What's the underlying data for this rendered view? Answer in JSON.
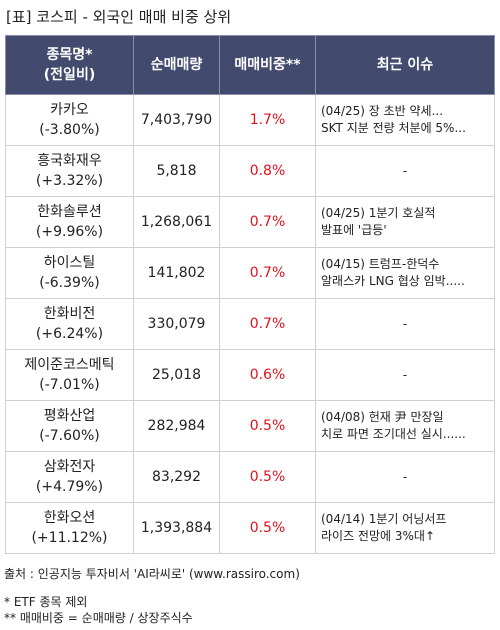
{
  "title": "[표] 코스피 - 외국인 매매 비중 상위",
  "headers": {
    "name_line1": "종목명*",
    "name_line2": "(전일비)",
    "volume": "순매매량",
    "ratio": "매매비중**",
    "issue": "최근 이슈"
  },
  "rows": [
    {
      "name": "카카오",
      "change": "(-3.80%)",
      "volume": "7,403,790",
      "ratio": "1.7%",
      "issue1": "(04/25) 장 초반 약세...",
      "issue2": "SKT 지분 전량 처분에 5%..."
    },
    {
      "name": "흥국화재우",
      "change": "(+3.32%)",
      "volume": "5,818",
      "ratio": "0.8%",
      "issue1": "-",
      "issue2": ""
    },
    {
      "name": "한화솔루션",
      "change": "(+9.96%)",
      "volume": "1,268,061",
      "ratio": "0.7%",
      "issue1": "(04/25) 1분기 호실적",
      "issue2": "발표에 '급등'"
    },
    {
      "name": "하이스틸",
      "change": "(-6.39%)",
      "volume": "141,802",
      "ratio": "0.7%",
      "issue1": "(04/15) 트럼프-한덕수",
      "issue2": "알래스카 LNG 협상 임박....."
    },
    {
      "name": "한화비전",
      "change": "(+6.24%)",
      "volume": "330,079",
      "ratio": "0.7%",
      "issue1": "-",
      "issue2": ""
    },
    {
      "name": "제이준코스메틱",
      "change": "(-7.01%)",
      "volume": "25,018",
      "ratio": "0.6%",
      "issue1": "-",
      "issue2": ""
    },
    {
      "name": "평화산업",
      "change": "(-7.60%)",
      "volume": "282,984",
      "ratio": "0.5%",
      "issue1": "(04/08) 헌재 尹 만장일",
      "issue2": "치로 파면 조기대선 실시......"
    },
    {
      "name": "삼화전자",
      "change": "(+4.79%)",
      "volume": "83,292",
      "ratio": "0.5%",
      "issue1": "-",
      "issue2": ""
    },
    {
      "name": "한화오션",
      "change": "(+11.12%)",
      "volume": "1,393,884",
      "ratio": "0.5%",
      "issue1": "(04/14) 1분기 어닝서프",
      "issue2": "라이즈 전망에 3%대↑"
    }
  ],
  "footer": {
    "source": "출처 : 인공지능 투자비서 'AI라씨로' (www.rassiro.com)",
    "note1": "* ETF 종목 제외",
    "note2": "** 매매비중 = 순매매량 / 상장주식수"
  },
  "colors": {
    "header_bg": "#424a6e",
    "ratio_text": "#e0121d"
  }
}
